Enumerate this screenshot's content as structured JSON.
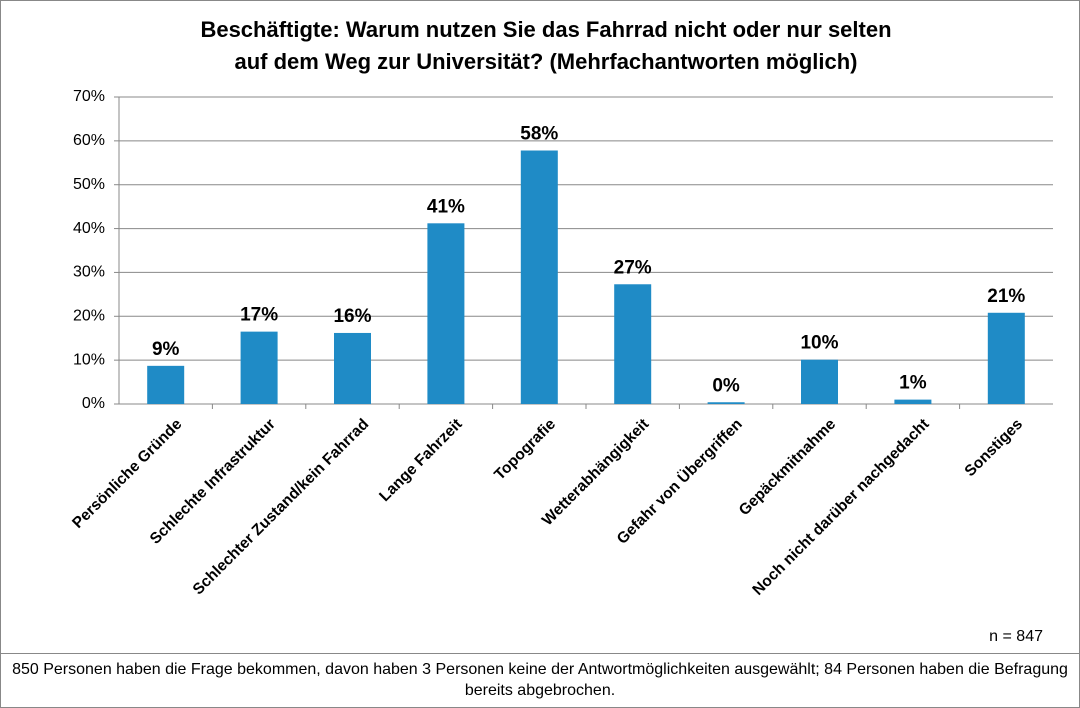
{
  "chart_data": {
    "type": "bar",
    "title": [
      "Beschäftigte: Warum nutzen Sie das Fahrrad nicht oder nur selten",
      "auf dem Weg zur Universität? (Mehrfachantworten möglich)"
    ],
    "categories": [
      "Persönliche Gründe",
      "Schlechte Infrastruktur",
      "Schlechter Zustand/kein Fahrrad",
      "Lange Fahrzeit",
      "Topografie",
      "Wetterabhängigkeit",
      "Gefahr von Übergriffen",
      "Gepäckmitnahme",
      "Noch nicht darüber nachgedacht",
      "Sonstiges"
    ],
    "values": [
      8.7,
      16.5,
      16.2,
      41.2,
      57.8,
      27.3,
      0.4,
      10.1,
      1.0,
      20.8
    ],
    "value_labels": [
      "9%",
      "17%",
      "16%",
      "41%",
      "58%",
      "27%",
      "0%",
      "10%",
      "1%",
      "21%"
    ],
    "color": "#1f8bc6",
    "ylim": [
      0,
      70
    ],
    "yticks": [
      {
        "value": 0,
        "label": "0%"
      },
      {
        "value": 10,
        "label": "10%"
      },
      {
        "value": 20,
        "label": "20%"
      },
      {
        "value": 30,
        "label": "30%"
      },
      {
        "value": 40,
        "label": "40%"
      },
      {
        "value": 50,
        "label": "50%"
      },
      {
        "value": 60,
        "label": "60%"
      },
      {
        "value": 70,
        "label": "70%"
      }
    ],
    "grid": true,
    "annotation": "n = 847",
    "note": "850 Personen haben die Frage bekommen, davon haben 3 Personen keine der Antwortmöglichkeiten ausgewählt; 84 Personen haben die Befragung bereits abgebrochen."
  }
}
